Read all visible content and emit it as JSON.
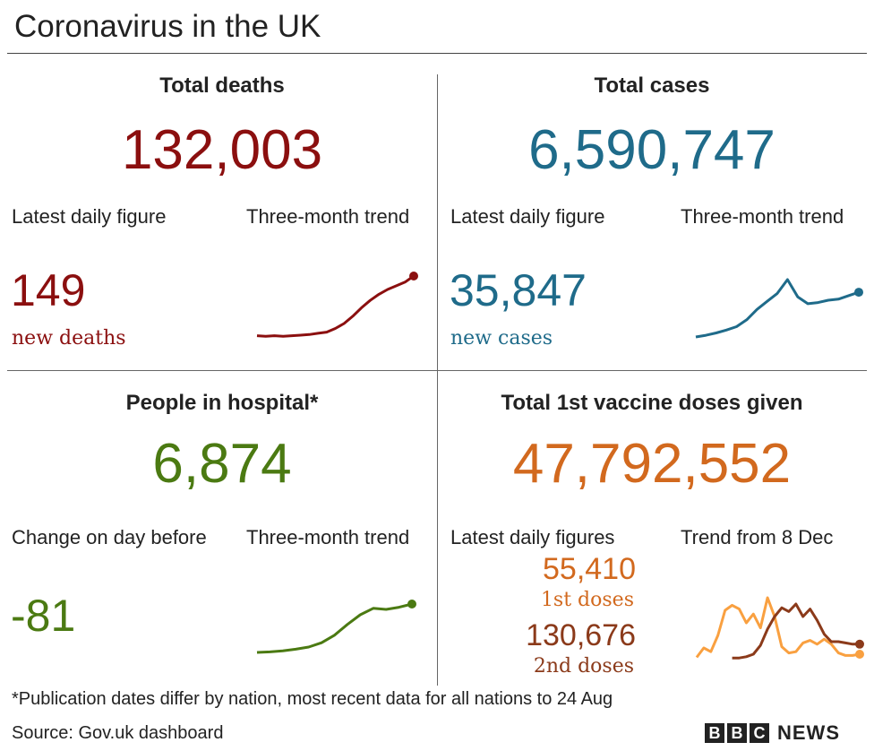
{
  "title": "Coronavirus in the UK",
  "colors": {
    "deaths": "#8b0f0f",
    "cases": "#1f6b8a",
    "hospital": "#4b7a12",
    "vaccine1": "#d2691e",
    "dose1_line": "#f9a040",
    "dose2": "#8b3a1a"
  },
  "deaths": {
    "heading": "Total deaths",
    "total": "132,003",
    "latest_label": "Latest daily figure",
    "trend_label": "Three-month trend",
    "latest": "149",
    "latest_sub": "new deaths"
  },
  "cases": {
    "heading": "Total cases",
    "total": "6,590,747",
    "latest_label": "Latest daily figure",
    "trend_label": "Three-month trend",
    "latest": "35,847",
    "latest_sub": "new cases"
  },
  "hospital": {
    "heading": "People in hospital*",
    "total": "6,874",
    "latest_label": "Change on day before",
    "trend_label": "Three-month trend",
    "latest": "-81"
  },
  "vaccine": {
    "heading": "Total 1st vaccine doses given",
    "total": "47,792,552",
    "latest_label": "Latest daily figures",
    "trend_label": "Trend from 8 Dec",
    "first": "55,410",
    "first_sub": "1st doses",
    "second": "130,676",
    "second_sub": "2nd doses"
  },
  "footnote": "*Publication dates differ by nation, most recent data for all nations to 24 Aug",
  "source": "Source: Gov.uk dashboard",
  "logo": "BBC NEWS",
  "chart_data": [
    {
      "type": "line",
      "name_ref": "deaths trend",
      "values": [
        2,
        1,
        2,
        1,
        2,
        3,
        4,
        6,
        8,
        14,
        22,
        34,
        48,
        60,
        70,
        78,
        84,
        90,
        100
      ]
    },
    {
      "type": "line",
      "name_ref": "cases trend",
      "values": [
        0,
        3,
        7,
        12,
        18,
        30,
        48,
        62,
        76,
        100,
        70,
        58,
        60,
        64,
        66,
        72,
        78
      ]
    },
    {
      "type": "line",
      "name_ref": "hospital trend",
      "values": [
        0,
        1,
        3,
        6,
        10,
        18,
        32,
        52,
        70,
        82,
        80,
        84,
        90
      ]
    },
    {
      "type": "line",
      "name_ref": "vaccine trend",
      "series": [
        {
          "name": "1st doses",
          "values": [
            5,
            20,
            14,
            40,
            80,
            88,
            82,
            60,
            74,
            52,
            100,
            70,
            22,
            12,
            14,
            28,
            32,
            26,
            34,
            26,
            12,
            8,
            8,
            10
          ]
        },
        {
          "name": "2nd doses",
          "values": [
            null,
            null,
            null,
            null,
            null,
            4,
            4,
            6,
            10,
            24,
            50,
            70,
            84,
            78,
            90,
            70,
            82,
            64,
            42,
            30,
            30,
            28,
            26,
            26
          ]
        }
      ]
    }
  ]
}
